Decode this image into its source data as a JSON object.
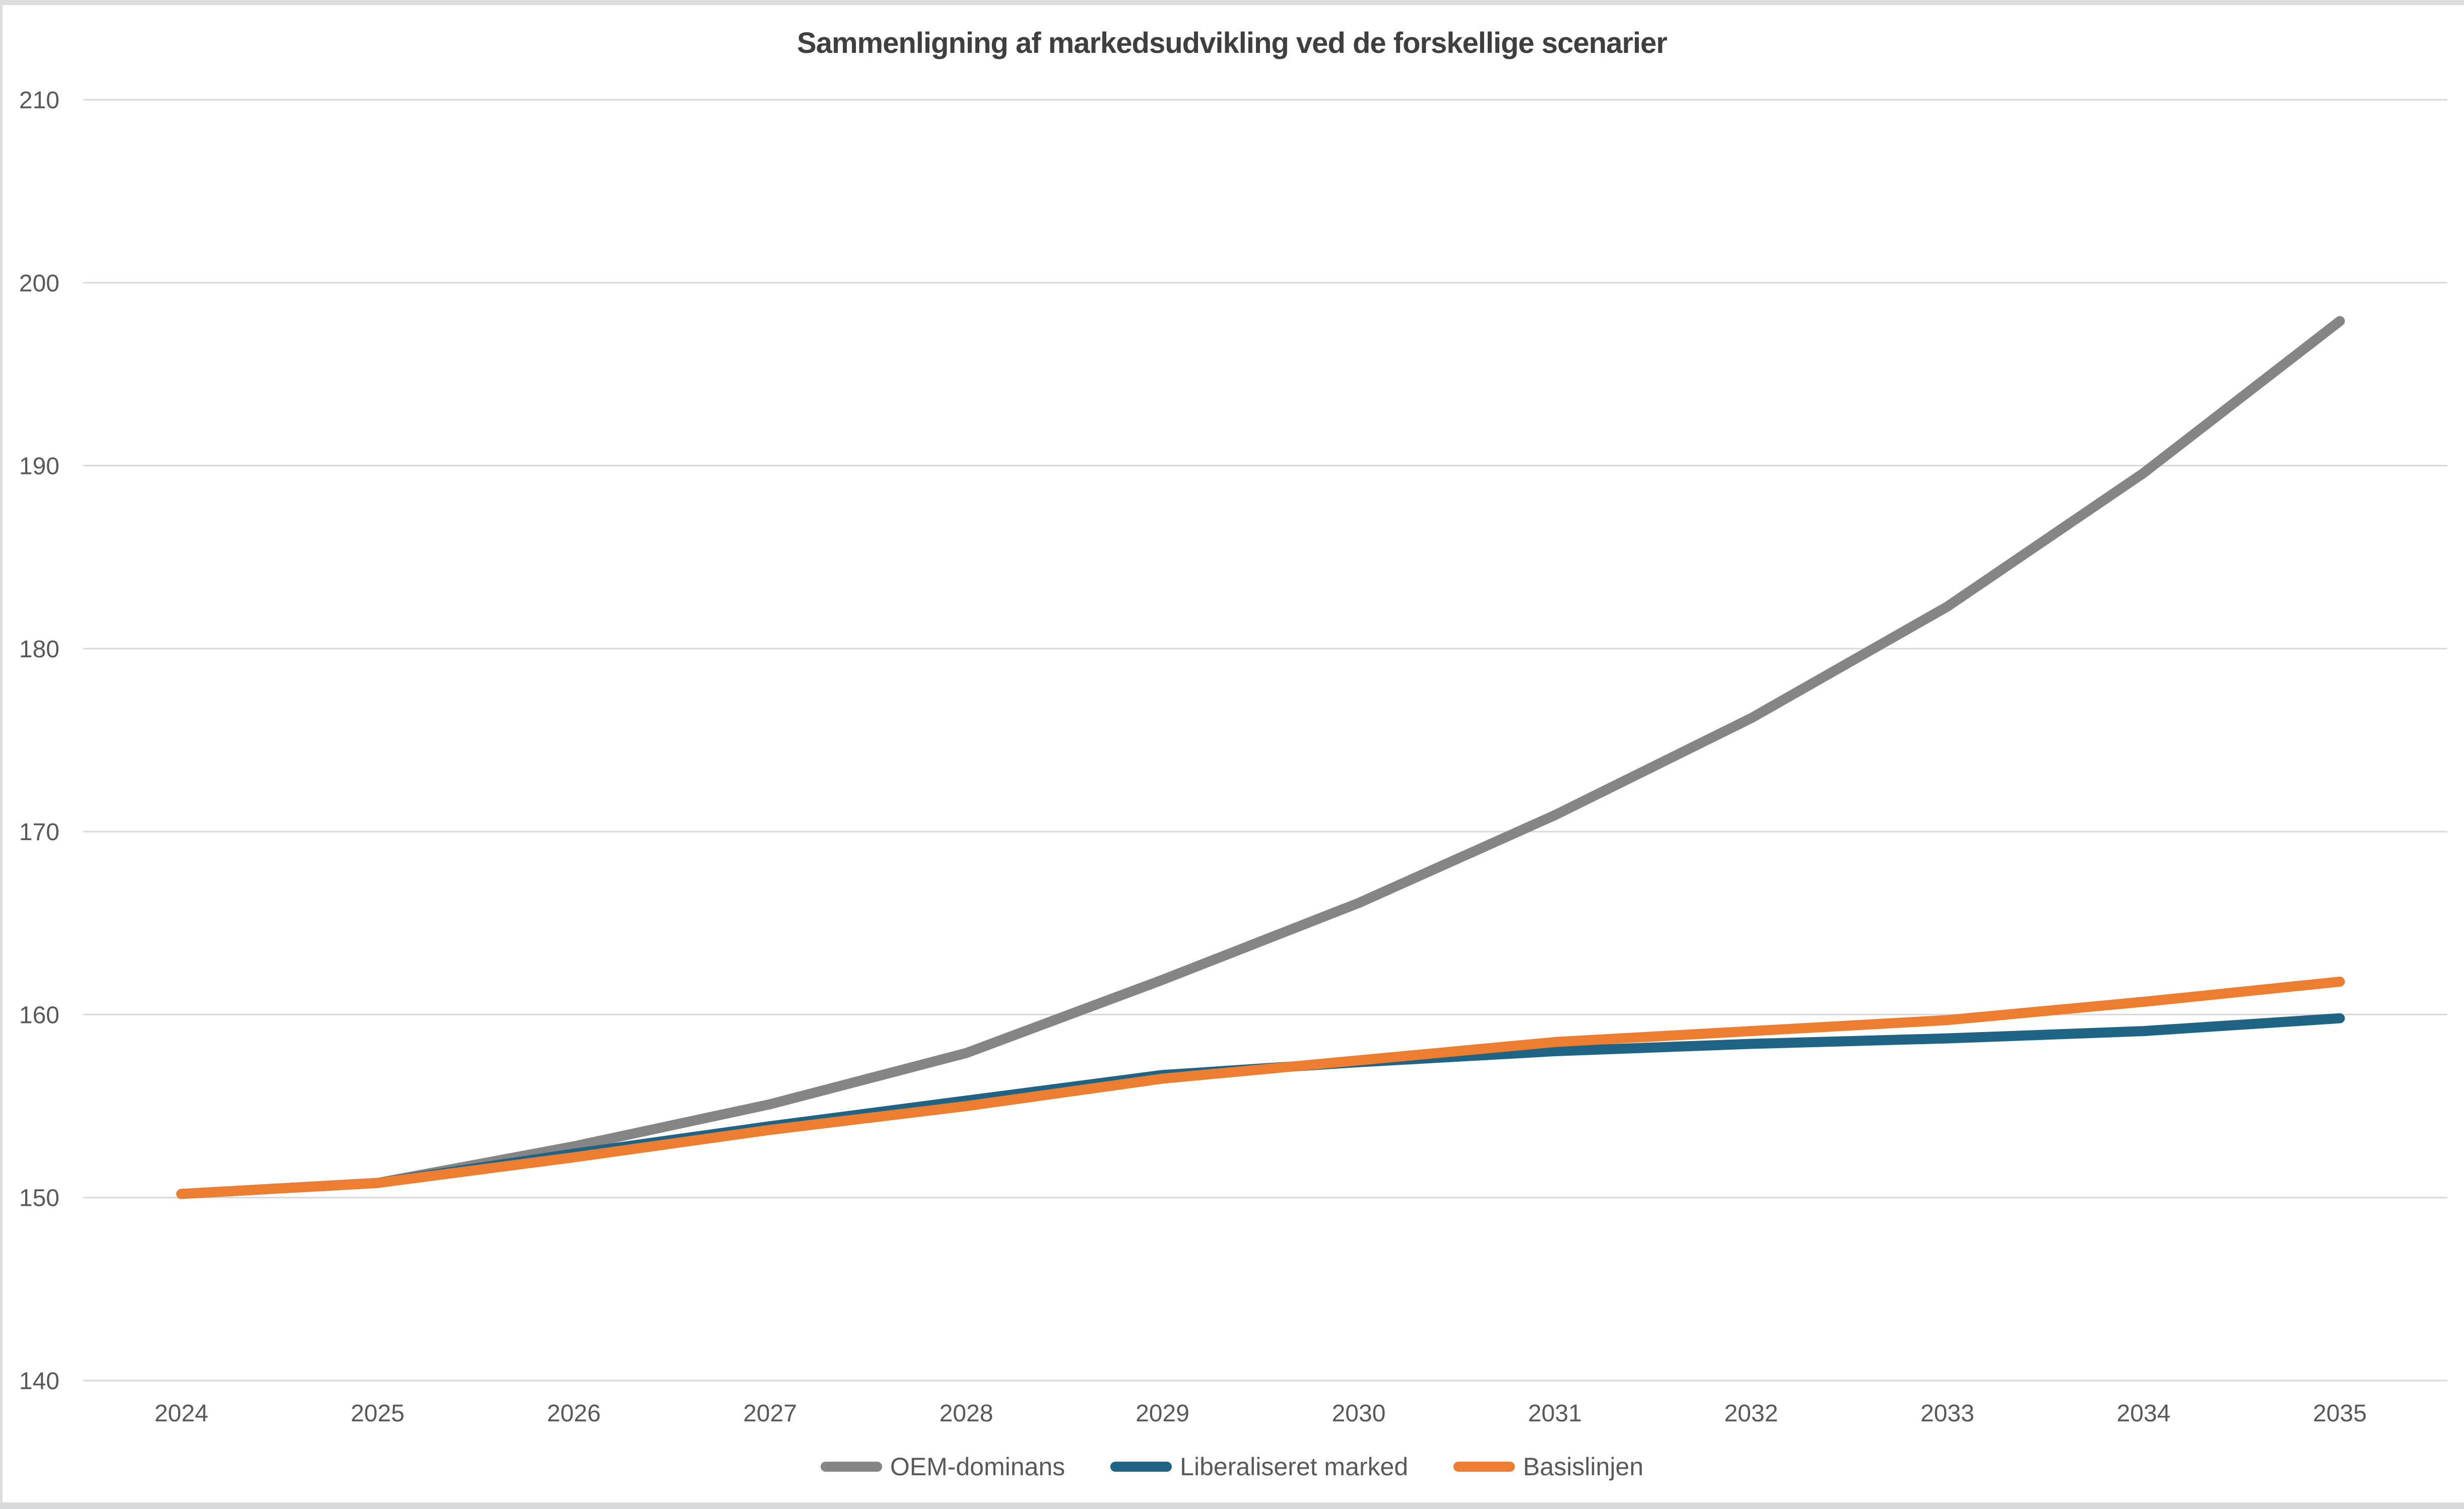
{
  "window": {
    "background": "#ffffff",
    "edge_color": "#dcdcdc"
  },
  "chart_data": {
    "type": "line",
    "title": "Sammenligning af markedsudvikling ved de forskellige scenarier",
    "x": [
      2024,
      2025,
      2026,
      2027,
      2028,
      2029,
      2030,
      2031,
      2032,
      2033,
      2034,
      2035
    ],
    "series": [
      {
        "name": "OEM-dominans",
        "color": "#858585",
        "values": [
          150.2,
          150.8,
          152.8,
          155.1,
          157.9,
          161.9,
          166.1,
          170.9,
          176.2,
          182.3,
          189.6,
          197.9
        ]
      },
      {
        "name": "Liberaliseret marked",
        "color": "#1F6484",
        "values": [
          150.2,
          150.8,
          152.4,
          153.9,
          155.3,
          156.7,
          157.4,
          158.0,
          158.4,
          158.7,
          159.1,
          159.8
        ]
      },
      {
        "name": "Basislinjen",
        "color": "#ED7D31",
        "values": [
          150.2,
          150.8,
          152.2,
          153.7,
          155.0,
          156.5,
          157.5,
          158.5,
          159.1,
          159.7,
          160.7,
          161.8
        ]
      }
    ],
    "ylim": [
      140,
      210
    ],
    "yticks": [
      140,
      150,
      160,
      170,
      180,
      190,
      200,
      210
    ],
    "grid": "horizontal",
    "gridline_color": "#D9D9D9",
    "tick_label_color": "#595959",
    "title_color": "#3F3F3F",
    "legend_position": "bottom"
  }
}
